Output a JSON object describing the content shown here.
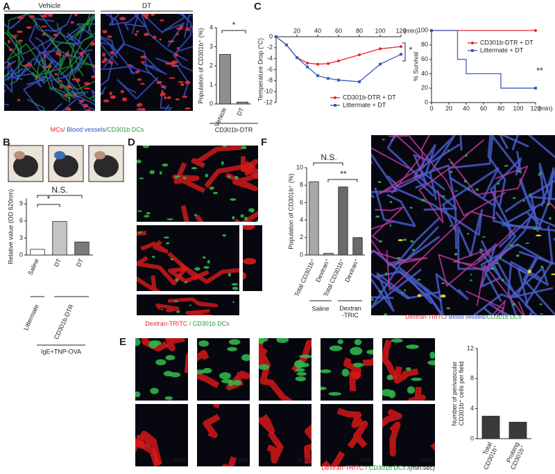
{
  "chart_data": [
    {
      "type": "bar",
      "categories": [
        "Vehicle",
        "DT"
      ],
      "values": [
        2.6,
        0.1
      ],
      "colors": [
        "#8f8f8f",
        "#8f8f8f"
      ],
      "ylim": [
        0,
        4
      ],
      "yticks": [
        0,
        1,
        2,
        3,
        4
      ],
      "ylabel": "Population of CD301b⁺ (%)",
      "xlabel": "CD301b-DTR",
      "annotations": [
        "*"
      ]
    },
    {
      "type": "line",
      "x": [
        0,
        10,
        20,
        30,
        40,
        50,
        60,
        80,
        100,
        120
      ],
      "xlim": [
        0,
        120
      ],
      "xticks": [
        20,
        40,
        60,
        80,
        100,
        120
      ],
      "xunit": "(min)",
      "ylim": [
        -12,
        0
      ],
      "yticks": [
        0,
        -2,
        -4,
        -6,
        -8,
        -10,
        -12
      ],
      "ylabel": "Temperature Drop (°C)",
      "series": [
        {
          "name": "CD301b-DTR  + DT",
          "color": "#e8232a",
          "marker": "circle",
          "values": [
            0,
            -1.5,
            -3.8,
            -4.8,
            -5,
            -4.9,
            -4.4,
            -3.3,
            -2.2,
            -1.8
          ]
        },
        {
          "name": "Littermate + DT",
          "color": "#3b5bbd",
          "marker": "square",
          "values": [
            0,
            -1.5,
            -3.8,
            -5.5,
            -7.1,
            -7.6,
            -7.9,
            -8.2,
            -5,
            -3.2
          ]
        }
      ],
      "annotations": [
        "*"
      ]
    },
    {
      "type": "step",
      "x": [
        0,
        30,
        40,
        80,
        120
      ],
      "xlim": [
        0,
        120
      ],
      "xticks": [
        0,
        20,
        40,
        60,
        80,
        100,
        120
      ],
      "xunit": "(min)",
      "ylim": [
        0,
        100
      ],
      "yticks": [
        0,
        20,
        40,
        60,
        80,
        100
      ],
      "ylabel": "% Survival",
      "series": [
        {
          "name": "CD301b-DTR  + DT",
          "color": "#e8232a",
          "marker": "circle",
          "values": [
            100,
            100,
            100,
            100,
            100
          ]
        },
        {
          "name": "Littermate + DT",
          "color": "#3b5bbd",
          "marker": "square",
          "values": [
            100,
            60,
            40,
            20,
            20
          ]
        }
      ],
      "annotations": [
        "**"
      ]
    },
    {
      "type": "bar",
      "categories": [
        "Saline",
        "DT",
        "DT"
      ],
      "values": [
        1.0,
        5.9,
        2.3
      ],
      "colors": [
        "#ffffff",
        "#c4c4c4",
        "#7a7a7a"
      ],
      "ylim": [
        0,
        10
      ],
      "yticks": [
        0,
        3,
        6,
        9
      ],
      "ylabel": "Relative value (OD 620nm)",
      "groups": [
        "Littermate",
        "CD301b-DTR"
      ],
      "xlabel": "IgE+TNP-OVA",
      "annotations": [
        "*",
        "N.S."
      ]
    },
    {
      "type": "bar",
      "categories": [
        "Total CD301b⁺",
        "Dextran⁺",
        "Total CD301b⁺",
        "Dextran⁺"
      ],
      "values": [
        8.4,
        0.2,
        7.8,
        2.0
      ],
      "colors": [
        "#a8a8a8",
        "#a8a8a8",
        "#6a6a6a",
        "#6a6a6a"
      ],
      "ylim": [
        0,
        10
      ],
      "yticks": [
        0,
        2,
        4,
        6,
        8,
        10
      ],
      "ylabel": "Population of CD301b⁺ (%)",
      "groups": [
        "Saline",
        "Dextran\n-TRIC"
      ],
      "annotations": [
        "N.S.",
        "**"
      ]
    },
    {
      "type": "bar",
      "categories": [
        "Total\nCD301b⁺",
        "Probing\nCD301b⁺"
      ],
      "values": [
        3.0,
        2.2
      ],
      "colors": [
        "#3a3a3a",
        "#3a3a3a"
      ],
      "ylim": [
        0,
        12
      ],
      "yticks": [
        0,
        4,
        8,
        12
      ],
      "ylabel": "Number of perivascular\nCD301b⁺ cells per field"
    }
  ],
  "figure": {
    "panels": [
      "A",
      "B",
      "C",
      "D",
      "E",
      "F"
    ],
    "A": {
      "images": [
        "Vehicle",
        "DT"
      ],
      "caption": [
        {
          "text": "MCs",
          "color": "#e8232a"
        },
        {
          "text": "/ Blood vessels",
          "color": "#2f4fc0"
        },
        {
          "text": "/CD301b DCs",
          "color": "#1f9a3a"
        }
      ]
    },
    "D": {
      "caption": [
        {
          "text": "Dextran-TRITC",
          "color": "#e8232a"
        },
        {
          "text": " / CD301b DCs",
          "color": "#1f9a3a"
        }
      ]
    },
    "F": {
      "caption": [
        {
          "text": "Dextran-TRITC",
          "color": "#e8232a"
        },
        {
          "text": "/ Blood vessels",
          "color": "#2f4fc0"
        },
        {
          "text": "/CD301b DCs",
          "color": "#1f9a3a"
        }
      ]
    },
    "E": {
      "timestamps": [
        "00:00",
        "03:43",
        "09:33",
        "15:56",
        "20:42"
      ],
      "caption": [
        {
          "text": "Dextran-TRITC",
          "color": "#e8232a"
        },
        {
          "text": " / CD301b DCs",
          "color": "#1f9a3a"
        },
        {
          "text": " /(min:sec)",
          "color": "#222"
        }
      ]
    }
  }
}
